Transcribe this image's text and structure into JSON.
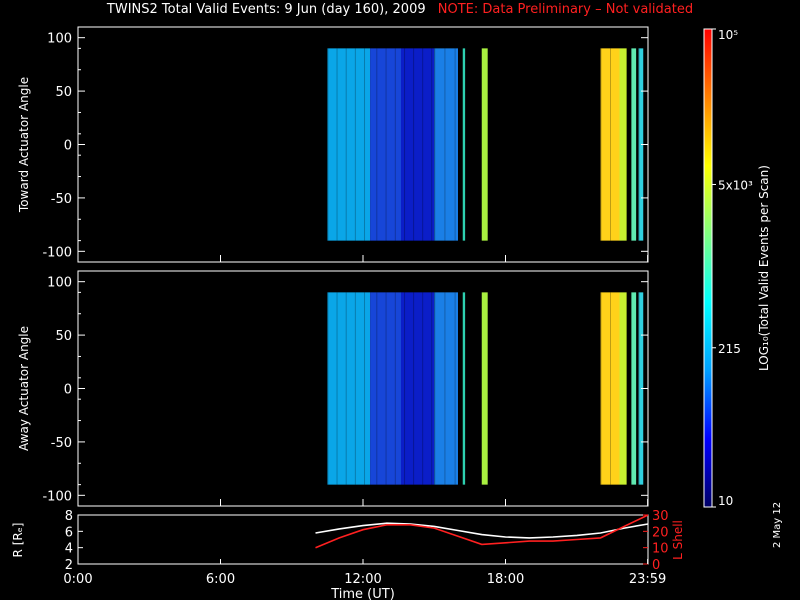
{
  "title": "TWINS2  Total Valid Events:  9 Jun (day 160), 2009",
  "warning": "NOTE: Data Preliminary – Not validated",
  "date_stamp": "2 May 12",
  "chart_data": [
    {
      "type": "heatmap",
      "ylabel": "Toward Actuator Angle",
      "ylim": [
        -110,
        110
      ],
      "yticks": [
        100,
        50,
        0,
        -50,
        -100
      ],
      "xlim": [
        0,
        24
      ],
      "xticks": [
        0,
        6,
        12,
        18,
        23.983
      ],
      "data_angle_range": [
        -90,
        90
      ],
      "strips": [
        {
          "x0": 10.5,
          "x1": 12.3,
          "level": 215,
          "color": "#0aa6e8"
        },
        {
          "x0": 12.3,
          "x1": 13.6,
          "level": 80,
          "color": "#1746d8"
        },
        {
          "x0": 13.6,
          "x1": 15.0,
          "level": 40,
          "color": "#0b1ec8"
        },
        {
          "x0": 15.0,
          "x1": 16.0,
          "level": 150,
          "color": "#1a7fe6"
        },
        {
          "x0": 16.2,
          "x1": 16.3,
          "level": 1000,
          "color": "#2ed0b0"
        },
        {
          "x0": 17.0,
          "x1": 17.25,
          "level": 3000,
          "color": "#a8f040"
        },
        {
          "x0": 22.0,
          "x1": 22.8,
          "level": 8000,
          "color": "#ffd21a"
        },
        {
          "x0": 22.8,
          "x1": 23.1,
          "level": 4000,
          "color": "#c8f030"
        },
        {
          "x0": 23.3,
          "x1": 23.5,
          "level": 1000,
          "color": "#60e8b0"
        },
        {
          "x0": 23.6,
          "x1": 23.8,
          "level": 500,
          "color": "#30d0e0"
        }
      ]
    },
    {
      "type": "heatmap",
      "ylabel": "Away Actuator Angle",
      "ylim": [
        -110,
        110
      ],
      "yticks": [
        100,
        50,
        0,
        -50,
        -100
      ],
      "xlim": [
        0,
        24
      ],
      "xticks": [
        0,
        6,
        12,
        18,
        23.983
      ],
      "data_angle_range": [
        -90,
        90
      ],
      "strips": [
        {
          "x0": 10.5,
          "x1": 12.3,
          "level": 215,
          "color": "#0aa6e8"
        },
        {
          "x0": 12.3,
          "x1": 13.6,
          "level": 80,
          "color": "#1746d8"
        },
        {
          "x0": 13.6,
          "x1": 15.0,
          "level": 40,
          "color": "#0b1ec8"
        },
        {
          "x0": 15.0,
          "x1": 16.0,
          "level": 150,
          "color": "#1a7fe6"
        },
        {
          "x0": 16.2,
          "x1": 16.3,
          "level": 1000,
          "color": "#2ed0b0"
        },
        {
          "x0": 17.0,
          "x1": 17.25,
          "level": 3000,
          "color": "#a8f040"
        },
        {
          "x0": 22.0,
          "x1": 22.8,
          "level": 8000,
          "color": "#ffd21a"
        },
        {
          "x0": 22.8,
          "x1": 23.1,
          "level": 4000,
          "color": "#c8f030"
        },
        {
          "x0": 23.3,
          "x1": 23.5,
          "level": 1000,
          "color": "#60e8b0"
        },
        {
          "x0": 23.6,
          "x1": 23.8,
          "level": 500,
          "color": "#30d0e0"
        }
      ]
    },
    {
      "type": "line",
      "xlabel": "Time (UT)",
      "xtick_labels": [
        "0:00",
        "6:00",
        "12:00",
        "18:00",
        "23:59"
      ],
      "xticks": [
        0,
        6,
        12,
        18,
        23.983
      ],
      "xlim": [
        0,
        24
      ],
      "left_axis": {
        "label": "R [Rₑ]",
        "ylim": [
          2,
          8
        ],
        "ticks": [
          2,
          4,
          6,
          8
        ]
      },
      "right_axis": {
        "label": "L Shell",
        "ylim": [
          0,
          30
        ],
        "ticks": [
          0,
          10,
          20,
          30
        ],
        "color": "#ff2020"
      },
      "series": [
        {
          "axis": "left",
          "color": "#ffffff",
          "x": [
            10.0,
            11.0,
            12.0,
            13.0,
            14.0,
            15.0,
            16.0,
            17.0,
            18.0,
            19.0,
            20.0,
            21.0,
            22.0,
            23.0,
            24.0
          ],
          "y": [
            5.8,
            6.3,
            6.7,
            7.0,
            6.9,
            6.6,
            6.1,
            5.6,
            5.3,
            5.2,
            5.3,
            5.5,
            5.8,
            6.4,
            6.9
          ]
        },
        {
          "axis": "right",
          "color": "#ff2020",
          "x": [
            10.0,
            11.0,
            12.0,
            13.0,
            14.0,
            15.0,
            16.0,
            17.0,
            18.0,
            19.0,
            20.0,
            21.0,
            22.0,
            23.0,
            24.0
          ],
          "y": [
            10,
            16,
            21,
            24,
            24,
            22,
            17,
            12,
            13,
            14,
            14,
            15,
            16,
            23,
            31
          ]
        }
      ]
    }
  ],
  "colorbar": {
    "label": "LOG₁₀(Total Valid Events per Scan)",
    "tick_labels": [
      "10⁵",
      "5x10³",
      "215",
      "10"
    ],
    "tick_values": [
      100000,
      5000,
      215,
      10
    ],
    "range": [
      10,
      100000
    ],
    "scale": "log",
    "colors": [
      "#000066",
      "#0000ff",
      "#00a0ff",
      "#00ffff",
      "#80ff80",
      "#ffff00",
      "#ff8000",
      "#ff0000"
    ]
  }
}
